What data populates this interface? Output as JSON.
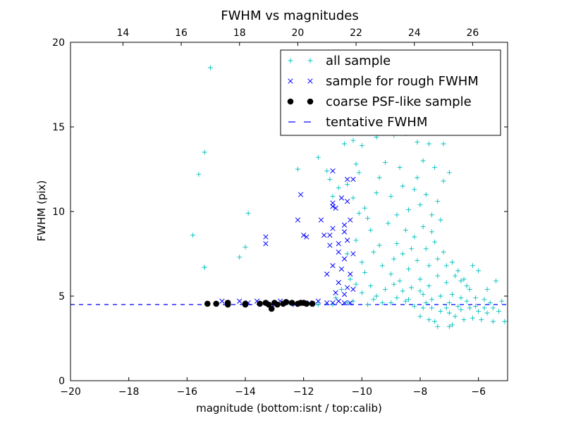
{
  "chart_data": {
    "type": "scatter",
    "title": "FWHM vs magnitudes",
    "xlabel": "magnitude (bottom:isnt / top:calib)",
    "ylabel": "FWHM (pix)",
    "xlim": [
      -20,
      -5
    ],
    "ylim": [
      0,
      20
    ],
    "top_xlim": [
      12.2,
      27.2
    ],
    "x_ticks": [
      -20,
      -18,
      -16,
      -14,
      -12,
      -10,
      -8,
      -6
    ],
    "x_tick_labels": [
      "−20",
      "−18",
      "−16",
      "−14",
      "−12",
      "−10",
      "−8",
      "−6"
    ],
    "y_ticks": [
      0,
      5,
      10,
      15,
      20
    ],
    "y_tick_labels": [
      "0",
      "5",
      "10",
      "15",
      "20"
    ],
    "top_x_ticks": [
      14,
      16,
      18,
      20,
      22,
      24,
      26
    ],
    "top_x_tick_labels": [
      "14",
      "16",
      "18",
      "20",
      "22",
      "24",
      "26"
    ],
    "legend_position": "top-right",
    "grid": false,
    "series": [
      {
        "name": "all sample",
        "marker": "plus",
        "color": "#00bfbf",
        "points": [
          [
            -15.2,
            18.5
          ],
          [
            -15.4,
            13.5
          ],
          [
            -15.6,
            12.2
          ],
          [
            -15.8,
            8.6
          ],
          [
            -15.4,
            6.7
          ],
          [
            -15.4,
            6.7
          ],
          [
            -13.9,
            9.9
          ],
          [
            -14.0,
            7.9
          ],
          [
            -14.2,
            7.3
          ],
          [
            -12.2,
            12.5
          ],
          [
            -11.5,
            13.2
          ],
          [
            -11.2,
            12.4
          ],
          [
            -11.1,
            11.9
          ],
          [
            -10.6,
            14.0
          ],
          [
            -10.3,
            14.2
          ],
          [
            -10.0,
            13.9
          ],
          [
            -9.5,
            14.4
          ],
          [
            -9.2,
            14.8
          ],
          [
            -8.9,
            14.5
          ],
          [
            -8.5,
            14.6
          ],
          [
            -8.1,
            14.1
          ],
          [
            -7.7,
            14.0
          ],
          [
            -7.2,
            14.0
          ],
          [
            -7.0,
            12.3
          ],
          [
            -7.9,
            13.0
          ],
          [
            -8.7,
            12.6
          ],
          [
            -9.4,
            12.0
          ],
          [
            -10.1,
            12.3
          ],
          [
            -10.5,
            11.6
          ],
          [
            -10.8,
            11.4
          ],
          [
            -11.0,
            10.9
          ],
          [
            -10.3,
            10.8
          ],
          [
            -9.9,
            10.2
          ],
          [
            -9.5,
            11.1
          ],
          [
            -9.0,
            10.9
          ],
          [
            -8.6,
            11.5
          ],
          [
            -8.2,
            11.3
          ],
          [
            -7.8,
            11.0
          ],
          [
            -7.4,
            10.6
          ],
          [
            -7.2,
            11.8
          ],
          [
            -9.7,
            8.9
          ],
          [
            -10.2,
            8.3
          ],
          [
            -10.5,
            7.5
          ],
          [
            -10.0,
            7.0
          ],
          [
            -10.4,
            6.0
          ],
          [
            -10.7,
            5.4
          ],
          [
            -10.9,
            4.9
          ],
          [
            -10.3,
            4.7
          ],
          [
            -10.0,
            5.2
          ],
          [
            -9.8,
            4.5
          ],
          [
            -9.5,
            5.0
          ],
          [
            -9.3,
            4.6
          ],
          [
            -9.0,
            4.6
          ],
          [
            -8.8,
            4.9
          ],
          [
            -8.5,
            4.7
          ],
          [
            -8.2,
            4.4
          ],
          [
            -7.9,
            4.3
          ],
          [
            -7.6,
            4.3
          ],
          [
            -7.3,
            4.1
          ],
          [
            -7.0,
            4.0
          ],
          [
            -6.8,
            3.8
          ],
          [
            -6.5,
            3.6
          ],
          [
            -6.2,
            3.7
          ],
          [
            -5.9,
            3.6
          ],
          [
            -5.5,
            3.5
          ],
          [
            -5.1,
            3.5
          ],
          [
            -5.5,
            4.3
          ],
          [
            -5.8,
            4.8
          ],
          [
            -6.1,
            4.9
          ],
          [
            -6.4,
            5.6
          ],
          [
            -6.6,
            5.9
          ],
          [
            -6.2,
            6.8
          ],
          [
            -6.0,
            6.5
          ],
          [
            -5.4,
            5.9
          ],
          [
            -5.7,
            5.4
          ],
          [
            -5.2,
            4.7
          ],
          [
            -7.4,
            3.2
          ],
          [
            -7.0,
            3.2
          ],
          [
            -7.7,
            3.6
          ],
          [
            -8.0,
            3.8
          ],
          [
            -6.9,
            3.3
          ],
          [
            -7.5,
            3.5
          ],
          [
            -9.1,
            9.3
          ],
          [
            -8.8,
            9.8
          ],
          [
            -8.4,
            10.1
          ],
          [
            -8.0,
            10.4
          ],
          [
            -7.6,
            9.8
          ],
          [
            -7.3,
            9.5
          ],
          [
            -9.6,
            7.6
          ],
          [
            -9.3,
            6.8
          ],
          [
            -9.0,
            6.3
          ],
          [
            -8.7,
            5.9
          ],
          [
            -8.4,
            6.6
          ],
          [
            -8.1,
            7.1
          ],
          [
            -7.8,
            7.8
          ],
          [
            -7.5,
            8.2
          ],
          [
            -7.2,
            7.6
          ],
          [
            -6.9,
            7.0
          ],
          [
            -6.7,
            6.5
          ],
          [
            -6.5,
            6.0
          ],
          [
            -6.3,
            5.4
          ],
          [
            -6.6,
            4.9
          ],
          [
            -6.9,
            5.1
          ],
          [
            -7.1,
            5.8
          ],
          [
            -7.4,
            6.2
          ],
          [
            -7.7,
            6.8
          ],
          [
            -8.0,
            6.0
          ],
          [
            -8.3,
            5.5
          ],
          [
            -8.6,
            5.3
          ],
          [
            -8.9,
            5.7
          ],
          [
            -9.2,
            5.4
          ],
          [
            -7.9,
            5.1
          ],
          [
            -7.6,
            4.8
          ],
          [
            -7.3,
            5.0
          ],
          [
            -7.0,
            4.6
          ],
          [
            -6.7,
            4.4
          ],
          [
            -8.2,
            8.5
          ],
          [
            -7.9,
            9.1
          ],
          [
            -7.6,
            8.8
          ],
          [
            -8.5,
            8.9
          ],
          [
            -8.8,
            8.1
          ],
          [
            -9.4,
            8.0
          ],
          [
            -9.8,
            9.6
          ],
          [
            -10.1,
            9.9
          ],
          [
            -8.1,
            12.0
          ],
          [
            -7.5,
            12.6
          ],
          [
            -9.2,
            12.9
          ],
          [
            -10.2,
            12.8
          ],
          [
            -6.6,
            4.2
          ],
          [
            -6.3,
            4.3
          ],
          [
            -6.0,
            4.1
          ],
          [
            -5.7,
            4.0
          ],
          [
            -5.3,
            4.1
          ],
          [
            -7.1,
            4.3
          ],
          [
            -7.8,
            4.6
          ],
          [
            -8.4,
            4.8
          ],
          [
            -9.6,
            4.8
          ],
          [
            -10.5,
            4.6
          ],
          [
            -11.0,
            4.5
          ],
          [
            -11.5,
            4.5
          ],
          [
            -12.0,
            4.6
          ],
          [
            -12.5,
            4.6
          ],
          [
            -13.0,
            4.6
          ],
          [
            -13.5,
            4.6
          ],
          [
            -14.0,
            4.6
          ],
          [
            -9.9,
            6.4
          ],
          [
            -10.2,
            5.7
          ],
          [
            -9.7,
            5.6
          ],
          [
            -8.6,
            7.5
          ],
          [
            -8.3,
            7.8
          ],
          [
            -8.9,
            7.2
          ],
          [
            -7.4,
            7.2
          ],
          [
            -7.1,
            6.8
          ],
          [
            -6.8,
            6.2
          ],
          [
            -7.7,
            5.6
          ],
          [
            -8.0,
            5.3
          ],
          [
            -6.4,
            4.7
          ],
          [
            -6.1,
            4.4
          ],
          [
            -5.8,
            4.3
          ],
          [
            -5.6,
            4.6
          ]
        ]
      },
      {
        "name": "sample for rough FWHM",
        "marker": "x",
        "color": "#0000ff",
        "points": [
          [
            -14.8,
            4.7
          ],
          [
            -14.6,
            4.6
          ],
          [
            -14.2,
            4.7
          ],
          [
            -13.9,
            4.6
          ],
          [
            -13.6,
            4.7
          ],
          [
            -13.3,
            4.6
          ],
          [
            -13.1,
            4.5
          ],
          [
            -12.8,
            4.7
          ],
          [
            -12.5,
            4.6
          ],
          [
            -12.3,
            4.5
          ],
          [
            -12.0,
            4.6
          ],
          [
            -11.8,
            4.6
          ],
          [
            -11.5,
            4.7
          ],
          [
            -11.2,
            4.6
          ],
          [
            -11.0,
            4.6
          ],
          [
            -10.8,
            4.7
          ],
          [
            -10.6,
            4.6
          ],
          [
            -10.4,
            4.6
          ],
          [
            -13.3,
            8.5
          ],
          [
            -13.3,
            8.1
          ],
          [
            -12.2,
            9.5
          ],
          [
            -12.0,
            8.6
          ],
          [
            -11.9,
            8.5
          ],
          [
            -11.4,
            9.5
          ],
          [
            -11.3,
            8.6
          ],
          [
            -11.1,
            8.6
          ],
          [
            -11.0,
            10.5
          ],
          [
            -11.0,
            10.3
          ],
          [
            -10.9,
            10.2
          ],
          [
            -10.7,
            10.8
          ],
          [
            -10.5,
            10.6
          ],
          [
            -10.4,
            9.5
          ],
          [
            -10.6,
            9.2
          ],
          [
            -11.0,
            9.0
          ],
          [
            -10.8,
            8.1
          ],
          [
            -10.5,
            8.3
          ],
          [
            -10.3,
            7.5
          ],
          [
            -10.6,
            7.2
          ],
          [
            -10.8,
            7.6
          ],
          [
            -11.1,
            8.0
          ],
          [
            -11.0,
            6.8
          ],
          [
            -10.7,
            6.6
          ],
          [
            -10.4,
            6.3
          ],
          [
            -10.8,
            5.8
          ],
          [
            -10.5,
            5.5
          ],
          [
            -10.3,
            5.4
          ],
          [
            -10.6,
            5.1
          ],
          [
            -10.9,
            5.2
          ],
          [
            -11.2,
            6.3
          ],
          [
            -10.3,
            11.9
          ],
          [
            -10.5,
            11.9
          ],
          [
            -11.0,
            12.4
          ],
          [
            -12.1,
            11.0
          ],
          [
            -10.6,
            8.8
          ]
        ]
      },
      {
        "name": "coarse PSF-like sample",
        "marker": "dot",
        "color": "#000000",
        "points": [
          [
            -15.3,
            4.55
          ],
          [
            -15.0,
            4.55
          ],
          [
            -14.6,
            4.5
          ],
          [
            -14.6,
            4.6
          ],
          [
            -14.0,
            4.55
          ],
          [
            -14.0,
            4.5
          ],
          [
            -13.5,
            4.55
          ],
          [
            -13.3,
            4.6
          ],
          [
            -13.2,
            4.5
          ],
          [
            -13.1,
            4.25
          ],
          [
            -13.0,
            4.6
          ],
          [
            -12.9,
            4.5
          ],
          [
            -12.7,
            4.55
          ],
          [
            -12.6,
            4.65
          ],
          [
            -12.4,
            4.6
          ],
          [
            -12.2,
            4.55
          ],
          [
            -12.1,
            4.6
          ],
          [
            -12.0,
            4.6
          ],
          [
            -11.9,
            4.55
          ],
          [
            -11.7,
            4.55
          ]
        ]
      }
    ],
    "hlines": [
      {
        "name": "tentative FWHM",
        "y": 4.5,
        "style": "dashed",
        "color": "#0000ff"
      }
    ]
  }
}
